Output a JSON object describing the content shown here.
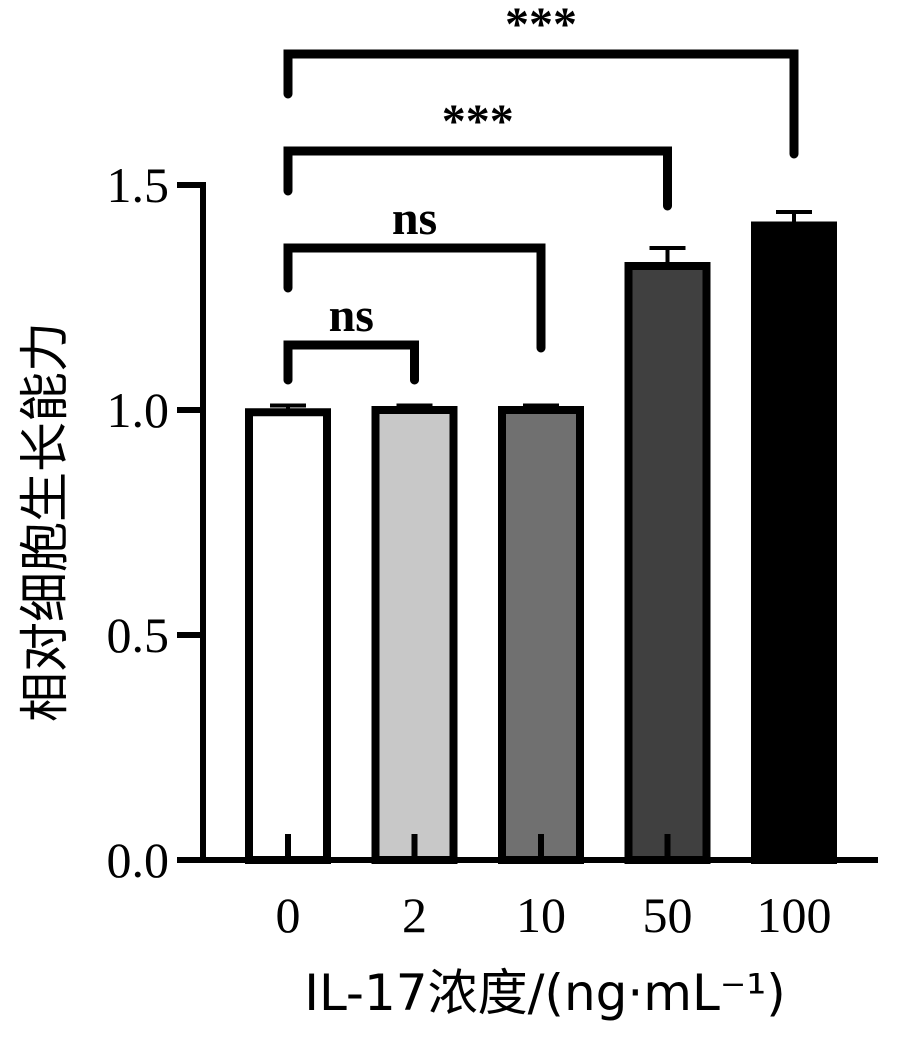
{
  "chart_data": {
    "type": "bar",
    "y_label": "相对细胞生长能力",
    "x_label": "IL-17浓度/(ng·mL⁻¹)",
    "categories": [
      "0",
      "2",
      "10",
      "50",
      "100"
    ],
    "values": [
      0.995,
      1.0,
      1.0,
      1.32,
      1.41
    ],
    "errors": [
      0.015,
      0.01,
      0.01,
      0.04,
      0.03
    ],
    "colors": [
      "#ffffff",
      "#c8c8c8",
      "#707070",
      "#404040",
      "#000000"
    ],
    "ylim": [
      0,
      1.5
    ],
    "yticks": [
      {
        "value": 0,
        "label": "0.0"
      },
      {
        "value": 0.5,
        "label": "0.5"
      },
      {
        "value": 1,
        "label": "1.0"
      },
      {
        "value": 1.5,
        "label": "1.5"
      }
    ],
    "significance": [
      {
        "from": "0",
        "to": "2",
        "label": "ns"
      },
      {
        "from": "0",
        "to": "10",
        "label": "ns"
      },
      {
        "from": "0",
        "to": "50",
        "label": "***"
      },
      {
        "from": "0",
        "to": "100",
        "label": "***"
      }
    ]
  }
}
